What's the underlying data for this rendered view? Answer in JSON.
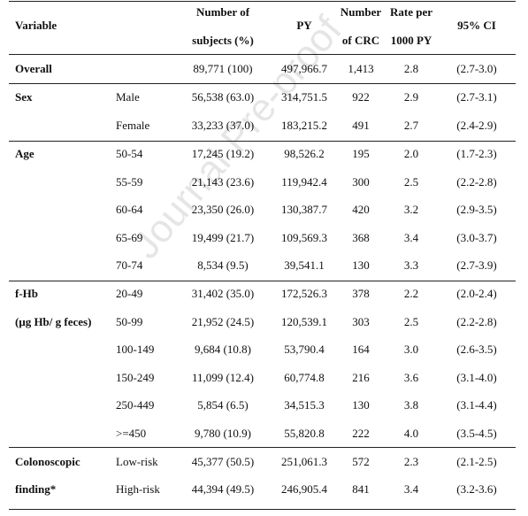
{
  "watermark": "Journal Pre-proof",
  "header": {
    "variable": "Variable",
    "subjects_l1": "Number of",
    "subjects_l2": "subjects (%)",
    "py": "PY",
    "crc_l1": "Number",
    "crc_l2": "of CRC",
    "rate_l1": "Rate per",
    "rate_l2": "1000 PY",
    "ci": "95% CI"
  },
  "rows": [
    {
      "group": "Overall",
      "sub": "",
      "subjects": "89,771 (100)",
      "py": "497,966.7",
      "crc": "1,413",
      "rate": "2.8",
      "ci": "(2.7-3.0)"
    },
    {
      "group": "Sex",
      "sub": "Male",
      "subjects": "56,538 (63.0)",
      "py": "314,751.5",
      "crc": "922",
      "rate": "2.9",
      "ci": "(2.7-3.1)"
    },
    {
      "group": "",
      "sub": "Female",
      "subjects": "33,233 (37.0)",
      "py": "183,215.2",
      "crc": "491",
      "rate": "2.7",
      "ci": "(2.4-2.9)"
    },
    {
      "group": "Age",
      "sub": "50-54",
      "subjects": "17,245 (19.2)",
      "py": "98,526.2",
      "crc": "195",
      "rate": "2.0",
      "ci": "(1.7-2.3)"
    },
    {
      "group": "",
      "sub": "55-59",
      "subjects": "21,143 (23.6)",
      "py": "119,942.4",
      "crc": "300",
      "rate": "2.5",
      "ci": "(2.2-2.8)"
    },
    {
      "group": "",
      "sub": "60-64",
      "subjects": "23,350 (26.0)",
      "py": "130,387.7",
      "crc": "420",
      "rate": "3.2",
      "ci": "(2.9-3.5)"
    },
    {
      "group": "",
      "sub": "65-69",
      "subjects": "19,499 (21.7)",
      "py": "109,569.3",
      "crc": "368",
      "rate": "3.4",
      "ci": "(3.0-3.7)"
    },
    {
      "group": "",
      "sub": "70-74",
      "subjects": "8,534 (9.5)",
      "py": "39,541.1",
      "crc": "130",
      "rate": "3.3",
      "ci": "(2.7-3.9)"
    },
    {
      "group": "f-Hb",
      "sub": "20-49",
      "subjects": "31,402 (35.0)",
      "py": "172,526.3",
      "crc": "378",
      "rate": "2.2",
      "ci": "(2.0-2.4)"
    },
    {
      "group": "(μg Hb/ g feces)",
      "sub": "50-99",
      "subjects": "21,952 (24.5)",
      "py": "120,539.1",
      "crc": "303",
      "rate": "2.5",
      "ci": "(2.2-2.8)"
    },
    {
      "group": "",
      "sub": "100-149",
      "subjects": "9,684 (10.8)",
      "py": "53,790.4",
      "crc": "164",
      "rate": "3.0",
      "ci": "(2.6-3.5)"
    },
    {
      "group": "",
      "sub": "150-249",
      "subjects": "11,099 (12.4)",
      "py": "60,774.8",
      "crc": "216",
      "rate": "3.6",
      "ci": "(3.1-4.0)"
    },
    {
      "group": "",
      "sub": "250-449",
      "subjects": "5,854 (6.5)",
      "py": "34,515.3",
      "crc": "130",
      "rate": "3.8",
      "ci": "(3.1-4.4)"
    },
    {
      "group": "",
      "sub": ">=450",
      "subjects": "9,780 (10.9)",
      "py": "55,820.8",
      "crc": "222",
      "rate": "4.0",
      "ci": "(3.5-4.5)"
    },
    {
      "group": "Colonoscopic",
      "sub": "Low-risk",
      "subjects": "45,377 (50.5)",
      "py": "251,061.3",
      "crc": "572",
      "rate": "2.3",
      "ci": "(2.1-2.5)"
    },
    {
      "group": "finding*",
      "sub": "High-risk",
      "subjects": "44,394 (49.5)",
      "py": "246,905.4",
      "crc": "841",
      "rate": "3.4",
      "ci": "(3.2-3.6)"
    }
  ]
}
